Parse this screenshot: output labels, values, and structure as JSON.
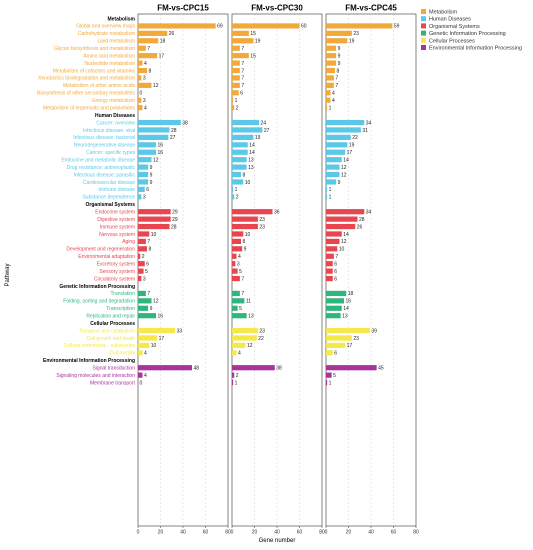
{
  "chart_data": {
    "type": "bar",
    "orientation": "horizontal",
    "xlabel": "Gene number",
    "ylabel": "Pathway",
    "xlim": [
      0,
      80
    ],
    "xticks": [
      0,
      20,
      40,
      60,
      80
    ],
    "grid": "vertical dashed",
    "legend_position": "top-right",
    "panels": [
      "FM-vs-CPC15",
      "FM-vs-CPC30",
      "FM-vs-CPC45"
    ],
    "legend": [
      {
        "label": "Metabolism",
        "color": "#F2A93B"
      },
      {
        "label": "Human Diseases",
        "color": "#5CC8E8"
      },
      {
        "label": "Organismal Systems",
        "color": "#E8454F"
      },
      {
        "label": "Genetic Information Processing",
        "color": "#2EB67D"
      },
      {
        "label": "Cellular Processes",
        "color": "#F4E84A"
      },
      {
        "label": "Environmental Information Processing",
        "color": "#A8339B"
      }
    ],
    "groups": [
      {
        "name": "Metabolism",
        "color": "#F2A93B",
        "pathways": [
          {
            "name": "Global and overview maps",
            "values": [
              69,
              60,
              59
            ]
          },
          {
            "name": "Carbohydrate metabolism",
            "values": [
              26,
              15,
              23
            ]
          },
          {
            "name": "Lipid metabolism",
            "values": [
              18,
              19,
              19
            ]
          },
          {
            "name": "Glycan biosynthesis and metabolism",
            "values": [
              7,
              7,
              9
            ]
          },
          {
            "name": "Amino acid metabolism",
            "values": [
              17,
              15,
              9
            ]
          },
          {
            "name": "Nucleotide metabolism",
            "values": [
              4,
              7,
              9
            ]
          },
          {
            "name": "Metabolism of cofactors and vitamins",
            "values": [
              8,
              7,
              8
            ]
          },
          {
            "name": "Xenobiotics biodegradation and metabolism",
            "values": [
              3,
              7,
              7
            ]
          },
          {
            "name": "Metabolism of other amino acids",
            "values": [
              12,
              7,
              7
            ]
          },
          {
            "name": "Biosynthesis of other secondary metabolites",
            "values": [
              0,
              6,
              4
            ]
          },
          {
            "name": "Energy metabolism",
            "values": [
              3,
              1,
              4
            ]
          },
          {
            "name": "Metabolism of terpenoids and polyketides",
            "values": [
              4,
              2,
              1
            ]
          }
        ]
      },
      {
        "name": "Human Diseases",
        "color": "#5CC8E8",
        "pathways": [
          {
            "name": "Cancer: overview",
            "values": [
              38,
              24,
              34
            ]
          },
          {
            "name": "Infectious disease: viral",
            "values": [
              28,
              27,
              31
            ]
          },
          {
            "name": "Infectious disease: bacterial",
            "values": [
              27,
              19,
              22
            ]
          },
          {
            "name": "Neurodegenerative disease",
            "values": [
              16,
              14,
              19
            ]
          },
          {
            "name": "Cancer: specific types",
            "values": [
              16,
              14,
              17
            ]
          },
          {
            "name": "Endocrine and metabolic disease",
            "values": [
              12,
              13,
              14
            ]
          },
          {
            "name": "Drug resistance: antineoplastic",
            "values": [
              9,
              13,
              12
            ]
          },
          {
            "name": "Infectious disease: parasitic",
            "values": [
              9,
              8,
              12
            ]
          },
          {
            "name": "Cardiovascular disease",
            "values": [
              9,
              10,
              9
            ]
          },
          {
            "name": "Immune disease",
            "values": [
              6,
              1,
              1
            ]
          },
          {
            "name": "Substance dependence",
            "values": [
              3,
              2,
              1
            ]
          }
        ]
      },
      {
        "name": "Organismal Systems",
        "color": "#E8454F",
        "pathways": [
          {
            "name": "Endocrine system",
            "values": [
              29,
              36,
              34
            ]
          },
          {
            "name": "Digestive system",
            "values": [
              29,
              23,
              28
            ]
          },
          {
            "name": "Immune system",
            "values": [
              28,
              23,
              26
            ]
          },
          {
            "name": "Nervous system",
            "values": [
              10,
              10,
              14
            ]
          },
          {
            "name": "Aging",
            "values": [
              7,
              8,
              12
            ]
          },
          {
            "name": "Development and regeneration",
            "values": [
              8,
              9,
              10
            ]
          },
          {
            "name": "Environmental adaptation",
            "values": [
              2,
              4,
              7
            ]
          },
          {
            "name": "Excretory system",
            "values": [
              6,
              3,
              6
            ]
          },
          {
            "name": "Sensory system",
            "values": [
              5,
              5,
              6
            ]
          },
          {
            "name": "Circulatory system",
            "values": [
              3,
              7,
              6
            ]
          }
        ]
      },
      {
        "name": "Genetic Information Processing",
        "color": "#2EB67D",
        "pathways": [
          {
            "name": "Translation",
            "values": [
              7,
              7,
              18
            ]
          },
          {
            "name": "Folding, sorting and degradation",
            "values": [
              12,
              11,
              16
            ]
          },
          {
            "name": "Transcription",
            "values": [
              9,
              5,
              14
            ]
          },
          {
            "name": "Replication and repair",
            "values": [
              16,
              13,
              13
            ]
          }
        ]
      },
      {
        "name": "Cellular Processes",
        "color": "#F4E84A",
        "pathways": [
          {
            "name": "Transport and catabolism",
            "values": [
              33,
              23,
              39
            ]
          },
          {
            "name": "Cell growth and death",
            "values": [
              17,
              22,
              23
            ]
          },
          {
            "name": "Cellular community - eukaryotes",
            "values": [
              10,
              12,
              17
            ]
          },
          {
            "name": "Cell motility",
            "values": [
              4,
              4,
              6
            ]
          }
        ]
      },
      {
        "name": "Environmental Information Processing",
        "color": "#A8339B",
        "pathways": [
          {
            "name": "Signal transduction",
            "values": [
              48,
              38,
              45
            ]
          },
          {
            "name": "Signaling molecules and interaction",
            "values": [
              4,
              2,
              5
            ]
          },
          {
            "name": "Membrane transport",
            "values": [
              0,
              1,
              1
            ]
          }
        ]
      }
    ]
  }
}
